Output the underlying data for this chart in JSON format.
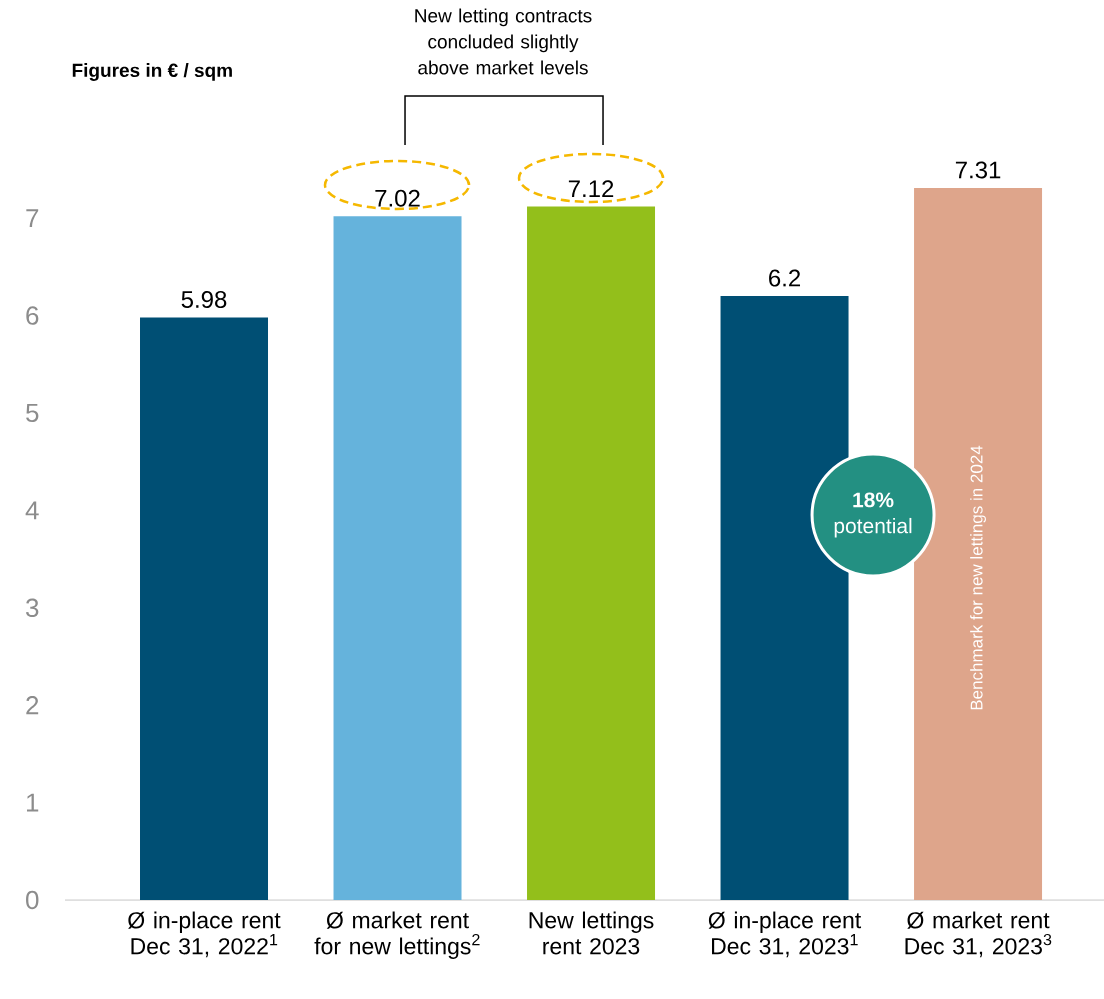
{
  "chart_data": {
    "type": "bar",
    "categories": [
      "Ø in-place rent Dec 31, 2022$^{1}$",
      "Ø market rent for new lettings$^{2}$",
      "New lettings rent 2023",
      "Ø in-place rent Dec 31, 2023$^{1}$",
      "Ø market rent Dec 31, 2023$^{3}$"
    ],
    "values": [
      5.98,
      7.02,
      7.12,
      6.2,
      7.31
    ],
    "colors": [
      "#004f74",
      "#65b3dc",
      "#93bf1b",
      "#004f74",
      "#dea58b"
    ],
    "ylim": [
      0,
      7.31
    ],
    "yticks": [
      0,
      1,
      2,
      3,
      4,
      5,
      6,
      7
    ],
    "data_labels": true,
    "grid": false,
    "annotations": [
      "Figures in € / sqm",
      "New letting contracts concluded slightly above market levels",
      "**18%** potential",
      "Benchmark for new lettings in 2024"
    ]
  }
}
